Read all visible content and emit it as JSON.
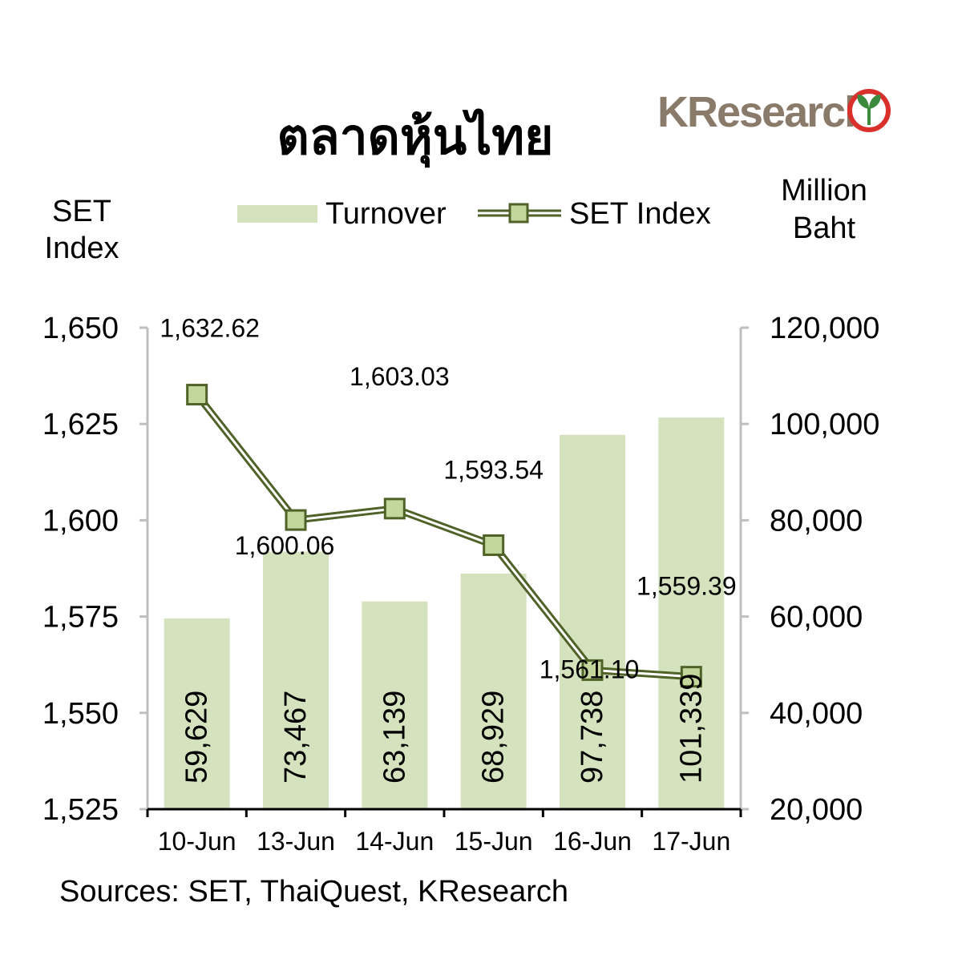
{
  "brand": {
    "name": "KResearch",
    "color": "#8a7a6a",
    "seal_ring_color": "#d9302b",
    "seal_leaf_color": "#3b8a3e"
  },
  "chart_data": {
    "type": "bar",
    "title": "ตลาดหุ้นไทย",
    "categories": [
      "10-Jun",
      "13-Jun",
      "14-Jun",
      "15-Jun",
      "16-Jun",
      "17-Jun"
    ],
    "series": [
      {
        "name": "Turnover",
        "type": "bar",
        "axis": "right",
        "values": [
          59629,
          73467,
          63139,
          68929,
          97738,
          101339
        ],
        "labels": [
          "59,629",
          "73,467",
          "63,139",
          "68,929",
          "97,738",
          "101,339"
        ],
        "color": "#d4e2bd"
      },
      {
        "name": "SET Index",
        "type": "line",
        "axis": "left",
        "values": [
          1632.62,
          1600.06,
          1603.03,
          1593.54,
          1561.1,
          1559.39
        ],
        "labels": [
          "1,632.62",
          "1,600.06",
          "1,603.03",
          "1,593.54",
          "1,561.10",
          "1,559.39"
        ],
        "color": "#4f6228",
        "marker_color": "#c3d69b"
      }
    ],
    "y_left": {
      "label_lines": [
        "SET",
        "Index"
      ],
      "range": [
        1525,
        1650
      ],
      "ticks": [
        1650,
        1625,
        1600,
        1575,
        1550,
        1525
      ],
      "tick_labels": [
        "1,650",
        "1,625",
        "1,600",
        "1,575",
        "1,550",
        "1,525"
      ]
    },
    "y_right": {
      "label_lines": [
        "Million",
        "Baht"
      ],
      "range": [
        20000,
        120000
      ],
      "ticks": [
        120000,
        100000,
        80000,
        60000,
        40000,
        20000
      ],
      "tick_labels": [
        "120,000",
        "100,000",
        "80,000",
        "60,000",
        "40,000",
        "20,000"
      ]
    },
    "grid": false,
    "legend_position": "top-center",
    "source": "Sources: SET, ThaiQuest, KResearch"
  }
}
